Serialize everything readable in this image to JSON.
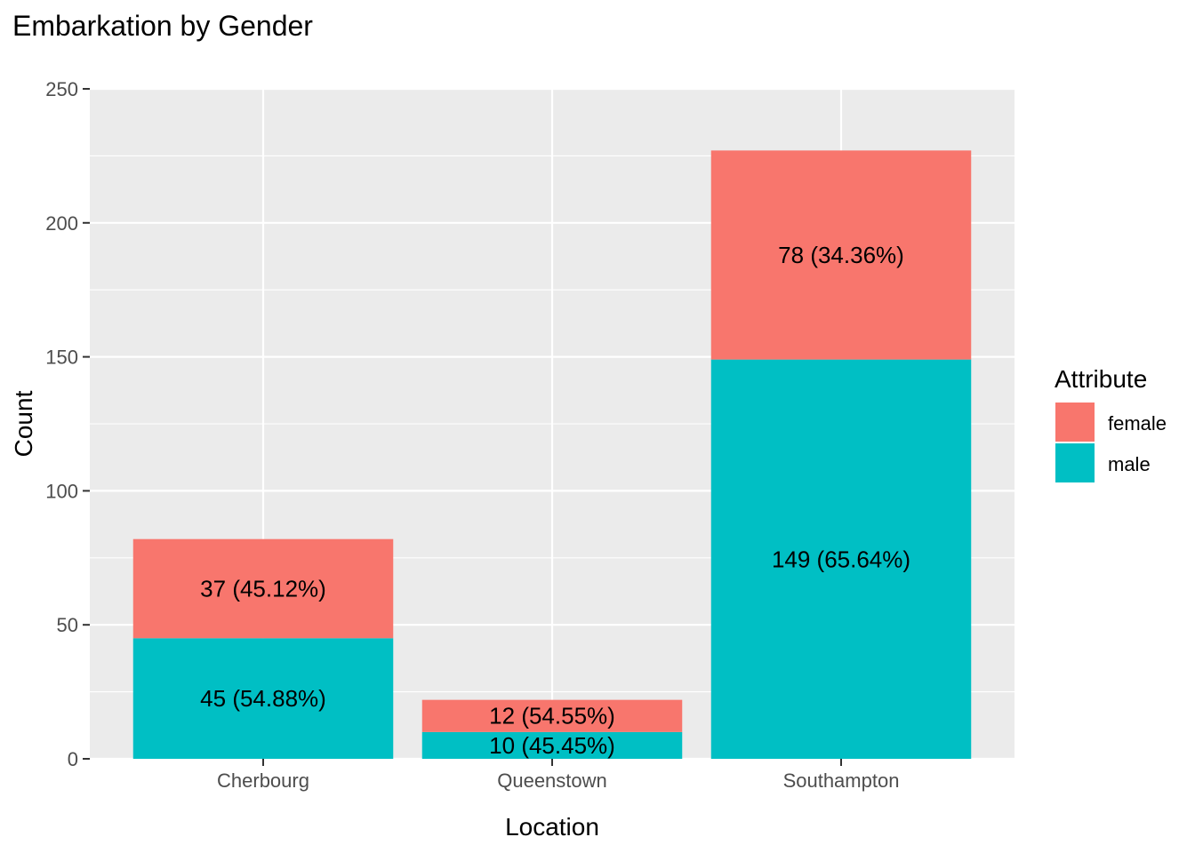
{
  "chart_data": {
    "type": "bar",
    "stacked": true,
    "title": "Embarkation by Gender",
    "xlabel": "Location",
    "ylabel": "Count",
    "ylim": [
      0,
      250
    ],
    "yticks": [
      0,
      50,
      100,
      150,
      200,
      250
    ],
    "grid": true,
    "categories": [
      "Cherbourg",
      "Queenstown",
      "Southampton"
    ],
    "series": [
      {
        "name": "male",
        "color": "#00BFC4",
        "values": [
          45,
          10,
          149
        ],
        "labels": [
          "45 (54.88%)",
          "10 (45.45%)",
          "149 (65.64%)"
        ]
      },
      {
        "name": "female",
        "color": "#F8766D",
        "values": [
          37,
          12,
          78
        ],
        "labels": [
          "37 (45.12%)",
          "12 (54.55%)",
          "78 (34.36%)"
        ]
      }
    ],
    "legend": {
      "title": "Attribute",
      "position": "right",
      "entries": [
        {
          "label": "female",
          "color": "#F8766D"
        },
        {
          "label": "male",
          "color": "#00BFC4"
        }
      ]
    },
    "panel_color": "#EBEBEB",
    "grid_color": "#FFFFFF"
  }
}
